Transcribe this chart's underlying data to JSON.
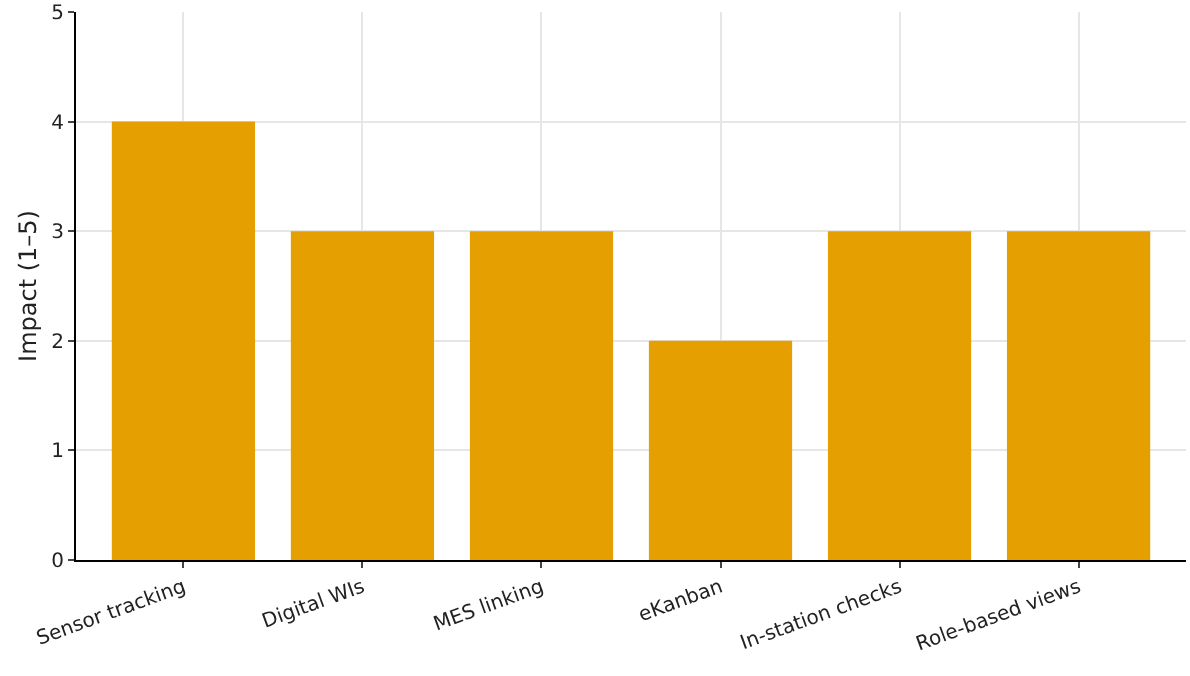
{
  "chart_data": {
    "type": "bar",
    "ylabel": "Impact (1–5)",
    "categories": [
      "Sensor tracking",
      "Digital WIs",
      "MES linking",
      "eKanban",
      "In-station checks",
      "Role-based views"
    ],
    "values": [
      4,
      3,
      3,
      2,
      3,
      3
    ],
    "color": "#e69f00",
    "ylim": [
      0,
      5
    ],
    "yticks": [
      0,
      1,
      2,
      3,
      4,
      5
    ],
    "grid": true
  }
}
